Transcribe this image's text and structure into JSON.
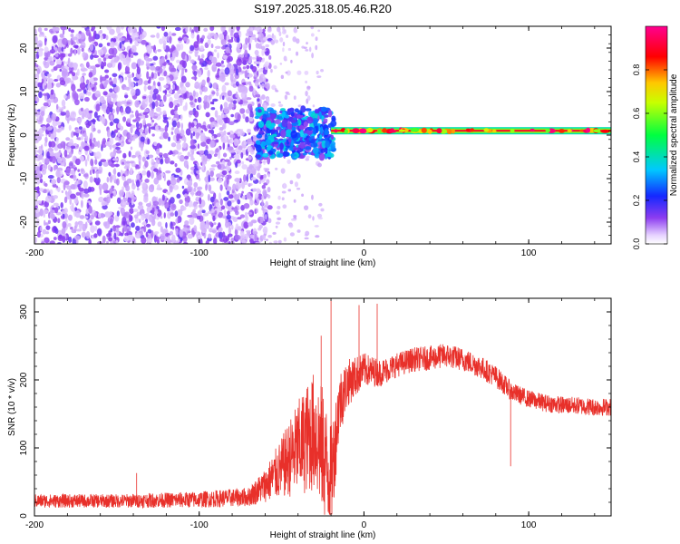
{
  "title": "S197.2025.318.05.46.R20",
  "chart_data": [
    {
      "type": "heatmap",
      "name": "spectrogram",
      "xlabel": "Height of straight line (km)",
      "ylabel": "Frequency (Hz)",
      "xlim": [
        -200,
        150
      ],
      "ylim": [
        -25,
        25
      ],
      "xticks": [
        -200,
        -100,
        0,
        100
      ],
      "xtick_labels": [
        "-200",
        "-100",
        "0",
        "100"
      ],
      "yticks": [
        -20,
        -10,
        0,
        10,
        20
      ],
      "ytick_labels": [
        "-20",
        "-10",
        "0",
        "10",
        "20"
      ],
      "colorbar": {
        "label": "Normalized spectral amplitude",
        "range": [
          0,
          1
        ],
        "ticks": [
          0.0,
          0.2,
          0.4,
          0.6,
          0.8
        ],
        "tick_labels": [
          "0.0",
          "0.2",
          "0.4",
          "0.6",
          "0.8"
        ],
        "colormap": "rainbow (white-violet-blue-cyan-green-yellow-red-magenta)"
      },
      "features": [
        {
          "description": "broadband noise speckle",
          "x_range": [
            -200,
            -65
          ],
          "freq_range": [
            -25,
            25
          ],
          "amplitude": 0.05
        },
        {
          "description": "turbulent transition zone",
          "x_range": [
            -65,
            -18
          ],
          "freq_range": [
            -5,
            6
          ],
          "amplitude": 0.3
        },
        {
          "description": "narrow tone near 1 Hz",
          "x_range": [
            -20,
            150
          ],
          "freq": 1,
          "amplitude": 0.9
        }
      ]
    },
    {
      "type": "line",
      "name": "snr",
      "xlabel": "Height of straight line (km)",
      "ylabel": "SNR (10 * v/v)",
      "xlim": [
        -200,
        150
      ],
      "ylim": [
        0,
        320
      ],
      "xticks": [
        -200,
        -100,
        0,
        100
      ],
      "xtick_labels": [
        "-200",
        "-100",
        "0",
        "100"
      ],
      "yticks": [
        0,
        100,
        200,
        300
      ],
      "ytick_labels": [
        "0",
        "100",
        "200",
        "300"
      ],
      "color": "#e8302a",
      "envelope": {
        "x": [
          -200,
          -150,
          -100,
          -70,
          -60,
          -50,
          -40,
          -30,
          -25,
          -20,
          -15,
          -10,
          0,
          10,
          20,
          30,
          40,
          50,
          60,
          70,
          80,
          90,
          100,
          110,
          120,
          130,
          140,
          150
        ],
        "mean": [
          22,
          22,
          24,
          28,
          45,
          70,
          100,
          125,
          95,
          50,
          165,
          195,
          215,
          210,
          222,
          230,
          232,
          236,
          230,
          220,
          205,
          182,
          172,
          166,
          163,
          162,
          160,
          160
        ],
        "spread": [
          10,
          10,
          12,
          14,
          25,
          45,
          70,
          90,
          95,
          80,
          50,
          35,
          25,
          20,
          18,
          18,
          18,
          18,
          17,
          17,
          16,
          14,
          13,
          13,
          13,
          13,
          13,
          13
        ]
      },
      "spikes": [
        {
          "x": -138,
          "y": 63
        },
        {
          "x": -20,
          "y": 320
        },
        {
          "x": 8,
          "y": 312
        },
        {
          "x": -3,
          "y": 310
        },
        {
          "x": -26,
          "y": 265
        },
        {
          "x": 89,
          "y": 73
        }
      ]
    }
  ]
}
